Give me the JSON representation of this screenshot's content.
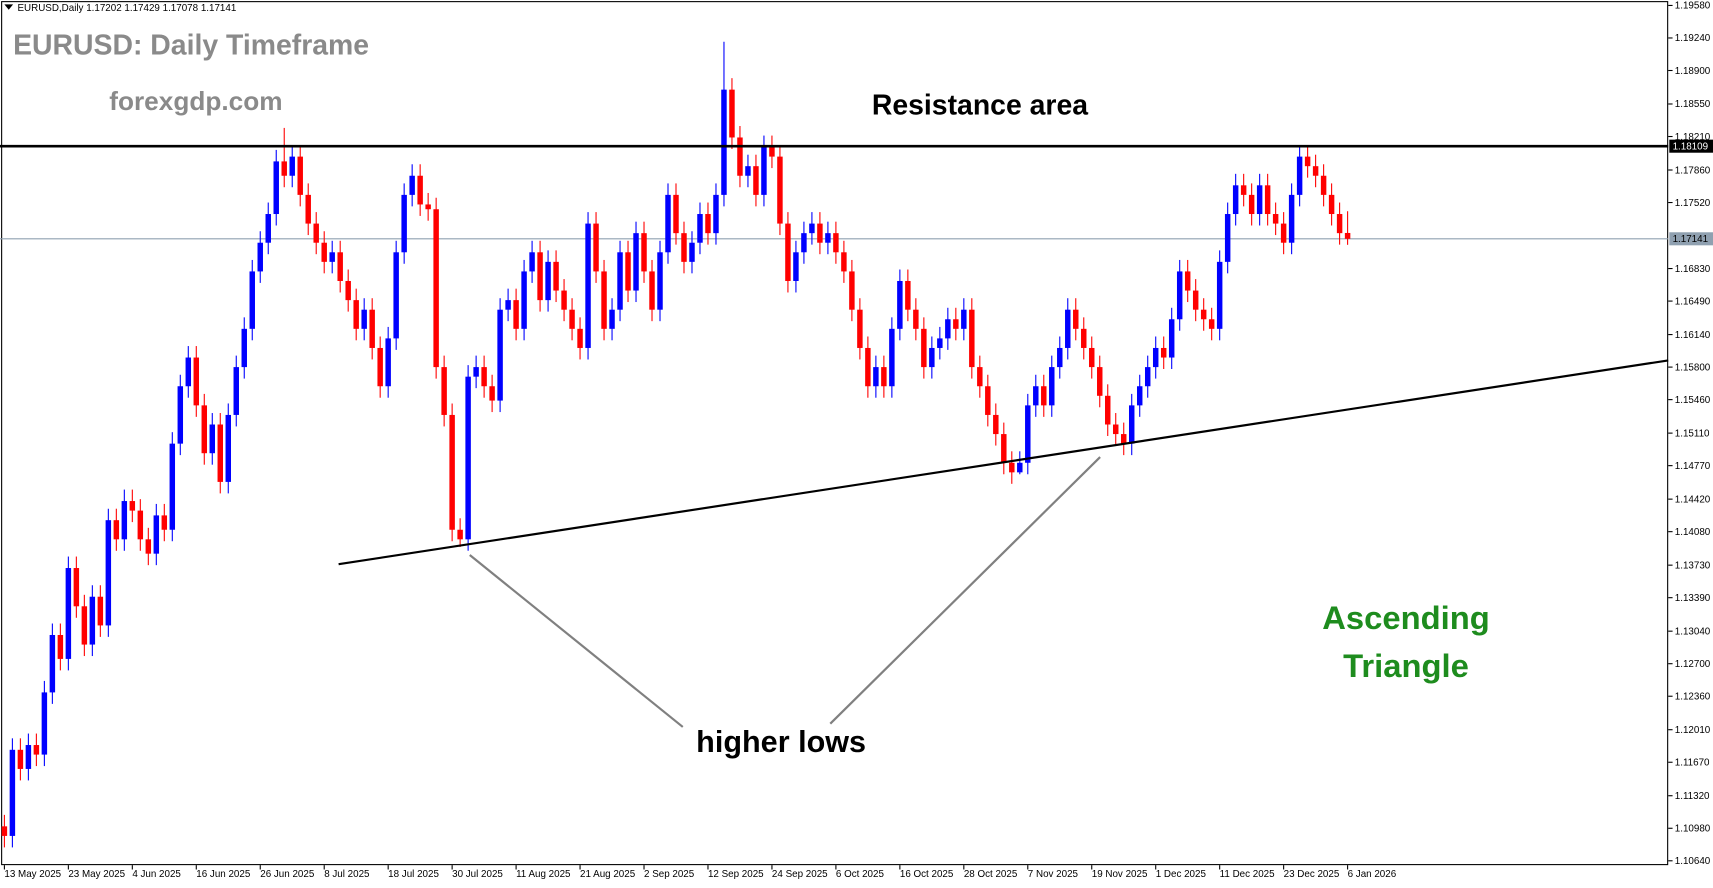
{
  "chart_data": {
    "type": "candlestick",
    "header": "EURUSD,Daily  1.17202 1.17429 1.17078 1.17141",
    "title": "EURUSD: Daily Timeframe",
    "subtitle": "forexgdp.com",
    "annotations": {
      "resistance": "Resistance area",
      "higher_lows": "higher lows",
      "pattern": [
        "Ascending",
        "Triangle"
      ]
    },
    "open": [
      1.11,
      1.109,
      1.118,
      1.116,
      1.1185,
      1.1175,
      1.124,
      1.13,
      1.1275,
      1.137,
      1.133,
      1.129,
      1.134,
      1.131,
      1.142,
      1.14,
      1.144,
      1.143,
      1.14,
      1.1385,
      1.1425,
      1.141,
      1.15,
      1.156,
      1.159,
      1.154,
      1.149,
      1.152,
      1.146,
      1.153,
      1.158,
      1.162,
      1.168,
      1.171,
      1.174,
      1.1795,
      1.178,
      1.18,
      1.176,
      1.173,
      1.171,
      1.169,
      1.17,
      1.167,
      1.165,
      1.162,
      1.164,
      1.16,
      1.156,
      1.161,
      1.17,
      1.176,
      1.178,
      1.175,
      1.1745,
      1.158,
      1.153,
      1.141,
      1.14,
      1.157,
      1.158,
      1.156,
      1.1545,
      1.164,
      1.165,
      1.162,
      1.168,
      1.17,
      1.165,
      1.169,
      1.166,
      1.164,
      1.162,
      1.16,
      1.173,
      1.168,
      1.162,
      1.164,
      1.17,
      1.166,
      1.172,
      1.168,
      1.164,
      1.17,
      1.176,
      1.172,
      1.169,
      1.171,
      1.174,
      1.172,
      1.176,
      1.187,
      1.182,
      1.178,
      1.179,
      1.176,
      1.181,
      1.18,
      1.173,
      1.167,
      1.17,
      1.172,
      1.173,
      1.171,
      1.172,
      1.17,
      1.168,
      1.164,
      1.16,
      1.156,
      1.158,
      1.156,
      1.162,
      1.167,
      1.164,
      1.162,
      1.158,
      1.16,
      1.161,
      1.163,
      1.162,
      1.164,
      1.158,
      1.156,
      1.153,
      1.151,
      1.148,
      1.147,
      1.148,
      1.154,
      1.156,
      1.154,
      1.158,
      1.16,
      1.164,
      1.162,
      1.16,
      1.158,
      1.155,
      1.152,
      1.151,
      1.15,
      1.154,
      1.156,
      1.158,
      1.16,
      1.159,
      1.163,
      1.168,
      1.166,
      1.164,
      1.163,
      1.162,
      1.169,
      1.174,
      1.177,
      1.176,
      1.174,
      1.177,
      1.174,
      1.173,
      1.171,
      1.176,
      1.18,
      1.179,
      1.178,
      1.176,
      1.174,
      1.17202
    ],
    "high": [
      1.1112,
      1.1192,
      1.1192,
      1.1197,
      1.1197,
      1.1252,
      1.1312,
      1.1312,
      1.1382,
      1.1382,
      1.1342,
      1.1352,
      1.1352,
      1.1432,
      1.1432,
      1.1452,
      1.1452,
      1.1442,
      1.1412,
      1.1437,
      1.1437,
      1.1512,
      1.1572,
      1.1602,
      1.1602,
      1.1552,
      1.1532,
      1.1532,
      1.1542,
      1.1592,
      1.1632,
      1.1692,
      1.1722,
      1.1752,
      1.1807,
      1.183,
      1.1812,
      1.1812,
      1.1772,
      1.1742,
      1.1722,
      1.1712,
      1.1712,
      1.1682,
      1.1662,
      1.1652,
      1.1652,
      1.1612,
      1.1622,
      1.1712,
      1.1772,
      1.1792,
      1.1792,
      1.1762,
      1.1757,
      1.1592,
      1.1542,
      1.1422,
      1.1582,
      1.1592,
      1.1592,
      1.1572,
      1.1652,
      1.1662,
      1.1662,
      1.1692,
      1.1712,
      1.1712,
      1.1702,
      1.1702,
      1.1672,
      1.1652,
      1.1632,
      1.1742,
      1.1742,
      1.1692,
      1.1652,
      1.1712,
      1.1712,
      1.1732,
      1.1732,
      1.1692,
      1.1712,
      1.1772,
      1.1772,
      1.1732,
      1.1722,
      1.1752,
      1.1752,
      1.1772,
      1.192,
      1.1882,
      1.1832,
      1.1802,
      1.1802,
      1.1822,
      1.1822,
      1.1812,
      1.1742,
      1.1712,
      1.1732,
      1.1742,
      1.1742,
      1.1732,
      1.1732,
      1.1712,
      1.1692,
      1.1652,
      1.1612,
      1.1592,
      1.1592,
      1.1632,
      1.1682,
      1.1682,
      1.1652,
      1.1632,
      1.1612,
      1.1622,
      1.1642,
      1.1642,
      1.1652,
      1.1652,
      1.1592,
      1.1572,
      1.1542,
      1.1522,
      1.1492,
      1.1492,
      1.1552,
      1.1572,
      1.1572,
      1.1592,
      1.1612,
      1.1652,
      1.1652,
      1.1632,
      1.1612,
      1.1592,
      1.1562,
      1.1532,
      1.1522,
      1.1552,
      1.1572,
      1.1592,
      1.1612,
      1.1612,
      1.1642,
      1.1692,
      1.1692,
      1.1672,
      1.1652,
      1.1642,
      1.1702,
      1.1752,
      1.1782,
      1.1782,
      1.1772,
      1.1782,
      1.1782,
      1.1752,
      1.1742,
      1.1772,
      1.1812,
      1.1812,
      1.1802,
      1.1792,
      1.1772,
      1.1752,
      1.17429
    ],
    "low": [
      1.1078,
      1.1078,
      1.1148,
      1.1148,
      1.1163,
      1.1163,
      1.1228,
      1.1263,
      1.1263,
      1.1318,
      1.1278,
      1.1278,
      1.1298,
      1.1298,
      1.1388,
      1.1388,
      1.1418,
      1.1388,
      1.1373,
      1.1373,
      1.1398,
      1.1398,
      1.1488,
      1.1548,
      1.1528,
      1.1478,
      1.1478,
      1.1448,
      1.1448,
      1.1518,
      1.1568,
      1.1608,
      1.1668,
      1.1698,
      1.1728,
      1.1768,
      1.1768,
      1.1748,
      1.1718,
      1.1698,
      1.1678,
      1.1678,
      1.1658,
      1.1638,
      1.1608,
      1.1608,
      1.1588,
      1.1548,
      1.1548,
      1.1598,
      1.1688,
      1.1748,
      1.1738,
      1.1733,
      1.1568,
      1.1518,
      1.1398,
      1.1392,
      1.1388,
      1.1558,
      1.1548,
      1.1533,
      1.1533,
      1.1628,
      1.1608,
      1.1608,
      1.1668,
      1.1638,
      1.1638,
      1.1648,
      1.1628,
      1.1608,
      1.1588,
      1.1588,
      1.1668,
      1.1608,
      1.1608,
      1.1628,
      1.1648,
      1.1648,
      1.1668,
      1.1628,
      1.1628,
      1.1688,
      1.1708,
      1.1678,
      1.1678,
      1.1698,
      1.1708,
      1.1708,
      1.1748,
      1.1808,
      1.1768,
      1.1768,
      1.1748,
      1.1748,
      1.1788,
      1.1718,
      1.1658,
      1.1658,
      1.1688,
      1.1708,
      1.1698,
      1.1698,
      1.1688,
      1.1668,
      1.1628,
      1.1588,
      1.1548,
      1.1548,
      1.1548,
      1.1548,
      1.1608,
      1.1628,
      1.1608,
      1.1568,
      1.1568,
      1.1588,
      1.1598,
      1.1608,
      1.1608,
      1.1568,
      1.1548,
      1.1518,
      1.1498,
      1.1468,
      1.1458,
      1.1468,
      1.1468,
      1.1528,
      1.1528,
      1.1528,
      1.1568,
      1.1588,
      1.1608,
      1.1588,
      1.1568,
      1.1538,
      1.1508,
      1.1498,
      1.1488,
      1.1488,
      1.1528,
      1.1548,
      1.1568,
      1.1578,
      1.1578,
      1.1618,
      1.1648,
      1.1628,
      1.1618,
      1.1608,
      1.1608,
      1.1678,
      1.1728,
      1.1748,
      1.1728,
      1.1728,
      1.1728,
      1.1718,
      1.1698,
      1.1698,
      1.1748,
      1.1778,
      1.1768,
      1.1748,
      1.1728,
      1.1708,
      1.17078
    ],
    "close": [
      1.109,
      1.118,
      1.116,
      1.1185,
      1.1175,
      1.124,
      1.13,
      1.1275,
      1.137,
      1.133,
      1.129,
      1.134,
      1.131,
      1.142,
      1.14,
      1.144,
      1.143,
      1.14,
      1.1385,
      1.1425,
      1.141,
      1.15,
      1.156,
      1.159,
      1.154,
      1.149,
      1.152,
      1.146,
      1.153,
      1.158,
      1.162,
      1.168,
      1.171,
      1.174,
      1.1795,
      1.178,
      1.18,
      1.176,
      1.173,
      1.171,
      1.169,
      1.17,
      1.167,
      1.165,
      1.162,
      1.164,
      1.16,
      1.156,
      1.161,
      1.17,
      1.176,
      1.178,
      1.175,
      1.1745,
      1.158,
      1.153,
      1.141,
      1.14,
      1.157,
      1.158,
      1.156,
      1.1545,
      1.164,
      1.165,
      1.162,
      1.168,
      1.17,
      1.165,
      1.169,
      1.166,
      1.164,
      1.162,
      1.16,
      1.173,
      1.168,
      1.162,
      1.164,
      1.17,
      1.166,
      1.172,
      1.168,
      1.164,
      1.17,
      1.176,
      1.172,
      1.169,
      1.171,
      1.174,
      1.172,
      1.176,
      1.187,
      1.182,
      1.178,
      1.179,
      1.176,
      1.181,
      1.18,
      1.173,
      1.167,
      1.17,
      1.172,
      1.173,
      1.171,
      1.172,
      1.17,
      1.168,
      1.164,
      1.16,
      1.156,
      1.158,
      1.156,
      1.162,
      1.167,
      1.164,
      1.162,
      1.158,
      1.16,
      1.161,
      1.163,
      1.162,
      1.164,
      1.158,
      1.156,
      1.153,
      1.151,
      1.148,
      1.147,
      1.148,
      1.154,
      1.156,
      1.154,
      1.158,
      1.16,
      1.164,
      1.162,
      1.16,
      1.158,
      1.155,
      1.152,
      1.151,
      1.15,
      1.154,
      1.156,
      1.158,
      1.16,
      1.159,
      1.163,
      1.168,
      1.166,
      1.164,
      1.163,
      1.162,
      1.169,
      1.174,
      1.177,
      1.176,
      1.174,
      1.177,
      1.174,
      1.173,
      1.171,
      1.176,
      1.18,
      1.179,
      1.178,
      1.176,
      1.174,
      1.172,
      1.17141
    ],
    "bull_color": "#0000ff",
    "bear_color": "#ff0000",
    "ylim": [
      1.1064,
      1.1958
    ],
    "yticks": [
      {
        "value": 1.1958,
        "label": "1.19580"
      },
      {
        "value": 1.1924,
        "label": "1.19240"
      },
      {
        "value": 1.189,
        "label": "1.18900"
      },
      {
        "value": 1.1855,
        "label": "1.18550"
      },
      {
        "value": 1.1821,
        "label": "1.18210"
      },
      {
        "value": 1.1786,
        "label": "1.17860"
      },
      {
        "value": 1.1752,
        "label": "1.17520"
      },
      {
        "value": 1.1683,
        "label": "1.16830"
      },
      {
        "value": 1.1649,
        "label": "1.16490"
      },
      {
        "value": 1.1614,
        "label": "1.16140"
      },
      {
        "value": 1.158,
        "label": "1.15800"
      },
      {
        "value": 1.1546,
        "label": "1.15460"
      },
      {
        "value": 1.1511,
        "label": "1.15110"
      },
      {
        "value": 1.1477,
        "label": "1.14770"
      },
      {
        "value": 1.1442,
        "label": "1.14420"
      },
      {
        "value": 1.1408,
        "label": "1.14080"
      },
      {
        "value": 1.1373,
        "label": "1.13730"
      },
      {
        "value": 1.1339,
        "label": "1.13390"
      },
      {
        "value": 1.1304,
        "label": "1.13040"
      },
      {
        "value": 1.127,
        "label": "1.12700"
      },
      {
        "value": 1.1236,
        "label": "1.12360"
      },
      {
        "value": 1.1201,
        "label": "1.12010"
      },
      {
        "value": 1.1167,
        "label": "1.11670"
      },
      {
        "value": 1.1132,
        "label": "1.11320"
      },
      {
        "value": 1.1098,
        "label": "1.10980"
      },
      {
        "value": 1.1064,
        "label": "1.10640"
      }
    ],
    "xlim": [
      -0.55,
      208.1
    ],
    "xticks": [
      {
        "value": 0,
        "label": "13 May 2025"
      },
      {
        "value": 8,
        "label": "23 May 2025"
      },
      {
        "value": 16,
        "label": "4 Jun 2025"
      },
      {
        "value": 24,
        "label": "16 Jun 2025"
      },
      {
        "value": 32,
        "label": "26 Jun 2025"
      },
      {
        "value": 40,
        "label": "8 Jul 2025"
      },
      {
        "value": 48,
        "label": "18 Jul 2025"
      },
      {
        "value": 56,
        "label": "30 Jul 2025"
      },
      {
        "value": 64,
        "label": "11 Aug 2025"
      },
      {
        "value": 72,
        "label": "21 Aug 2025"
      },
      {
        "value": 80,
        "label": "2 Sep 2025"
      },
      {
        "value": 88,
        "label": "12 Sep 2025"
      },
      {
        "value": 96,
        "label": "24 Sep 2025"
      },
      {
        "value": 104,
        "label": "6 Oct 2025"
      },
      {
        "value": 112,
        "label": "16 Oct 2025"
      },
      {
        "value": 120,
        "label": "28 Oct 2025"
      },
      {
        "value": 128,
        "label": "7 Nov 2025"
      },
      {
        "value": 136,
        "label": "19 Nov 2025"
      },
      {
        "value": 144,
        "label": "1 Dec 2025"
      },
      {
        "value": 152,
        "label": "11 Dec 2025"
      },
      {
        "value": 160,
        "label": "23 Dec 2025"
      },
      {
        "value": 168,
        "label": "6 Jan 2026"
      }
    ],
    "resistance_level": 1.18109,
    "current_price": 1.17141,
    "trendline": {
      "x": [
        41.8,
        208.1
      ],
      "y": [
        1.1374,
        1.1587
      ]
    }
  }
}
